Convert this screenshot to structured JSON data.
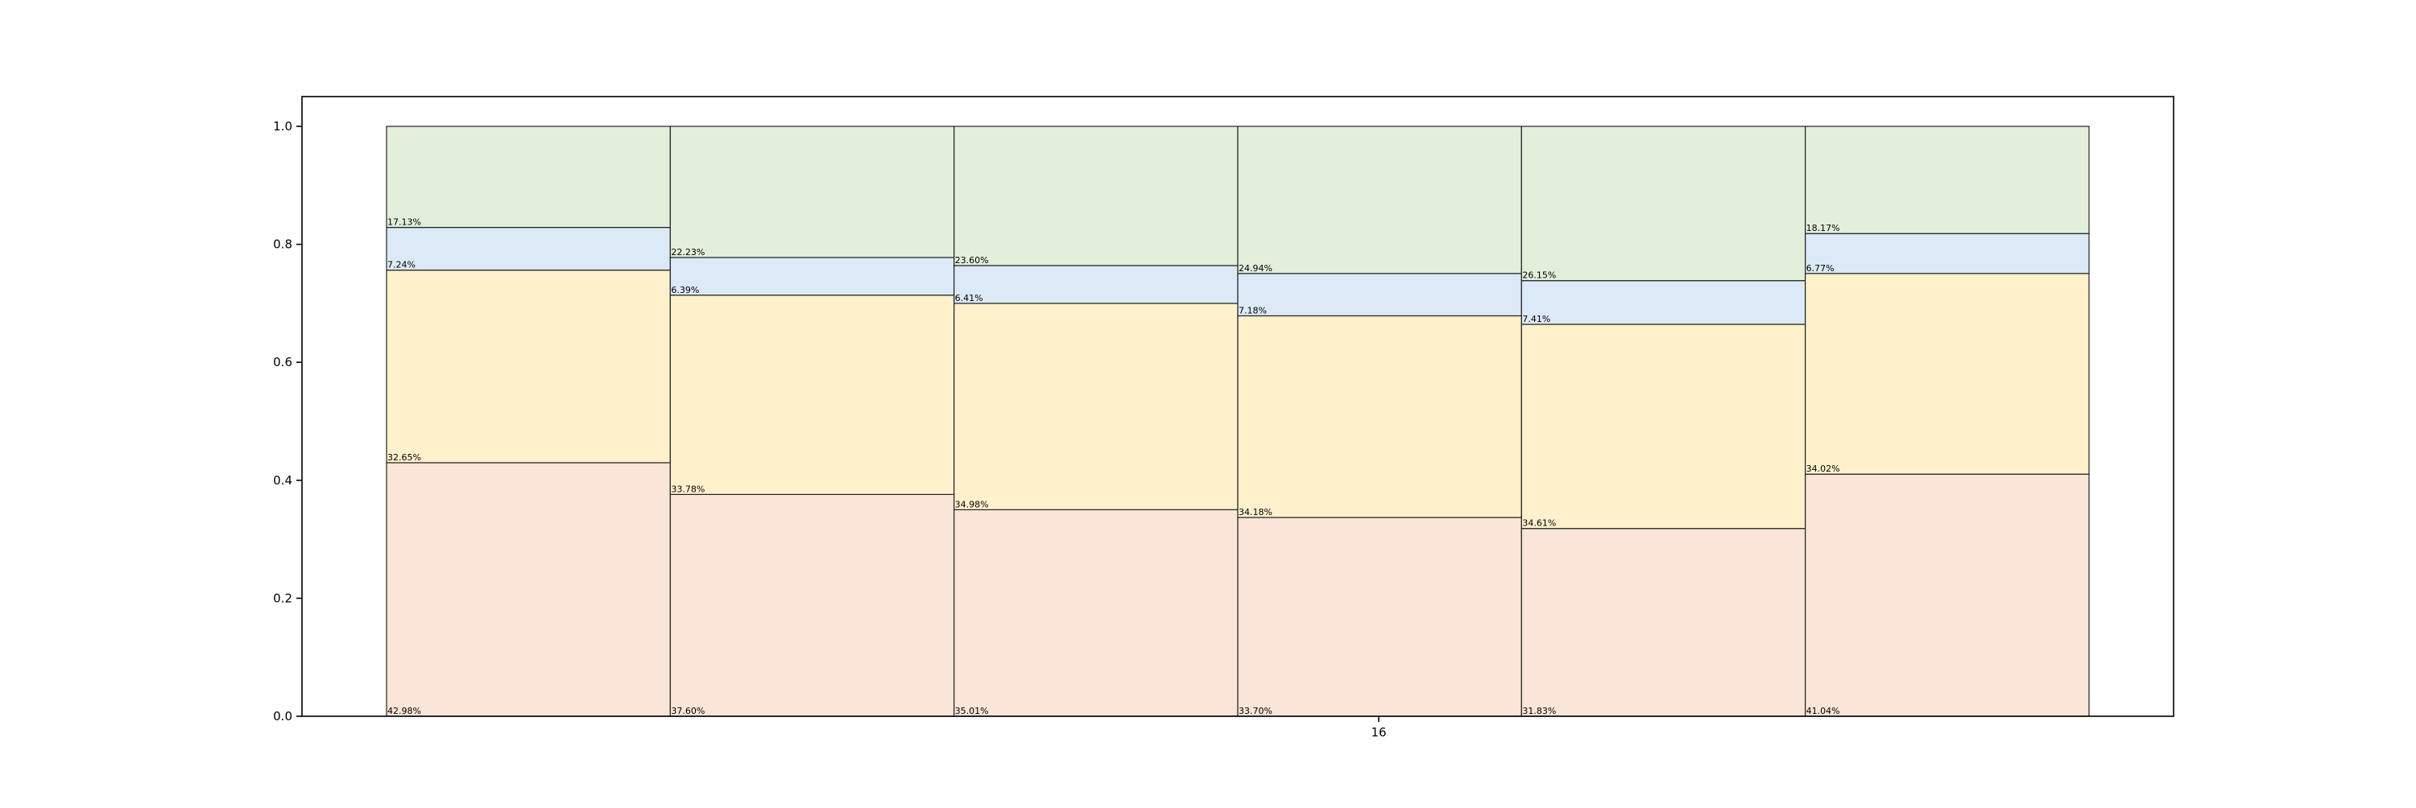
{
  "chart_data": {
    "type": "bar",
    "subtype": "stacked-100-percent",
    "title": "",
    "xlabel": "",
    "ylabel": "",
    "ylim": [
      0,
      1.05
    ],
    "yticks": [
      "0.0",
      "0.2",
      "0.4",
      "0.6",
      "0.8",
      "1.0"
    ],
    "xticks": [
      "16"
    ],
    "grid": false,
    "columns": 6,
    "series": [
      {
        "color": "#fae5d8",
        "values": [
          42.98,
          37.6,
          35.01,
          33.7,
          31.83,
          41.04
        ],
        "labels": [
          "42.98%",
          "37.60%",
          "35.01%",
          "33.70%",
          "31.83%",
          "41.04%"
        ]
      },
      {
        "color": "#fff1cc",
        "values": [
          32.65,
          33.78,
          34.98,
          34.18,
          34.61,
          34.02
        ],
        "labels": [
          "32.65%",
          "33.78%",
          "34.98%",
          "34.18%",
          "34.61%",
          "34.02%"
        ]
      },
      {
        "color": "#dce9f6",
        "values": [
          7.24,
          6.39,
          6.41,
          7.18,
          7.41,
          6.77
        ],
        "labels": [
          "7.24%",
          "6.39%",
          "6.41%",
          "7.18%",
          "7.41%",
          "6.77%"
        ]
      },
      {
        "color": "#e2efda",
        "values": [
          17.13,
          22.23,
          23.6,
          24.94,
          26.15,
          18.17
        ],
        "labels": [
          "17.13%",
          "22.23%",
          "23.60%",
          "24.94%",
          "26.15%",
          "18.17%"
        ]
      }
    ]
  }
}
